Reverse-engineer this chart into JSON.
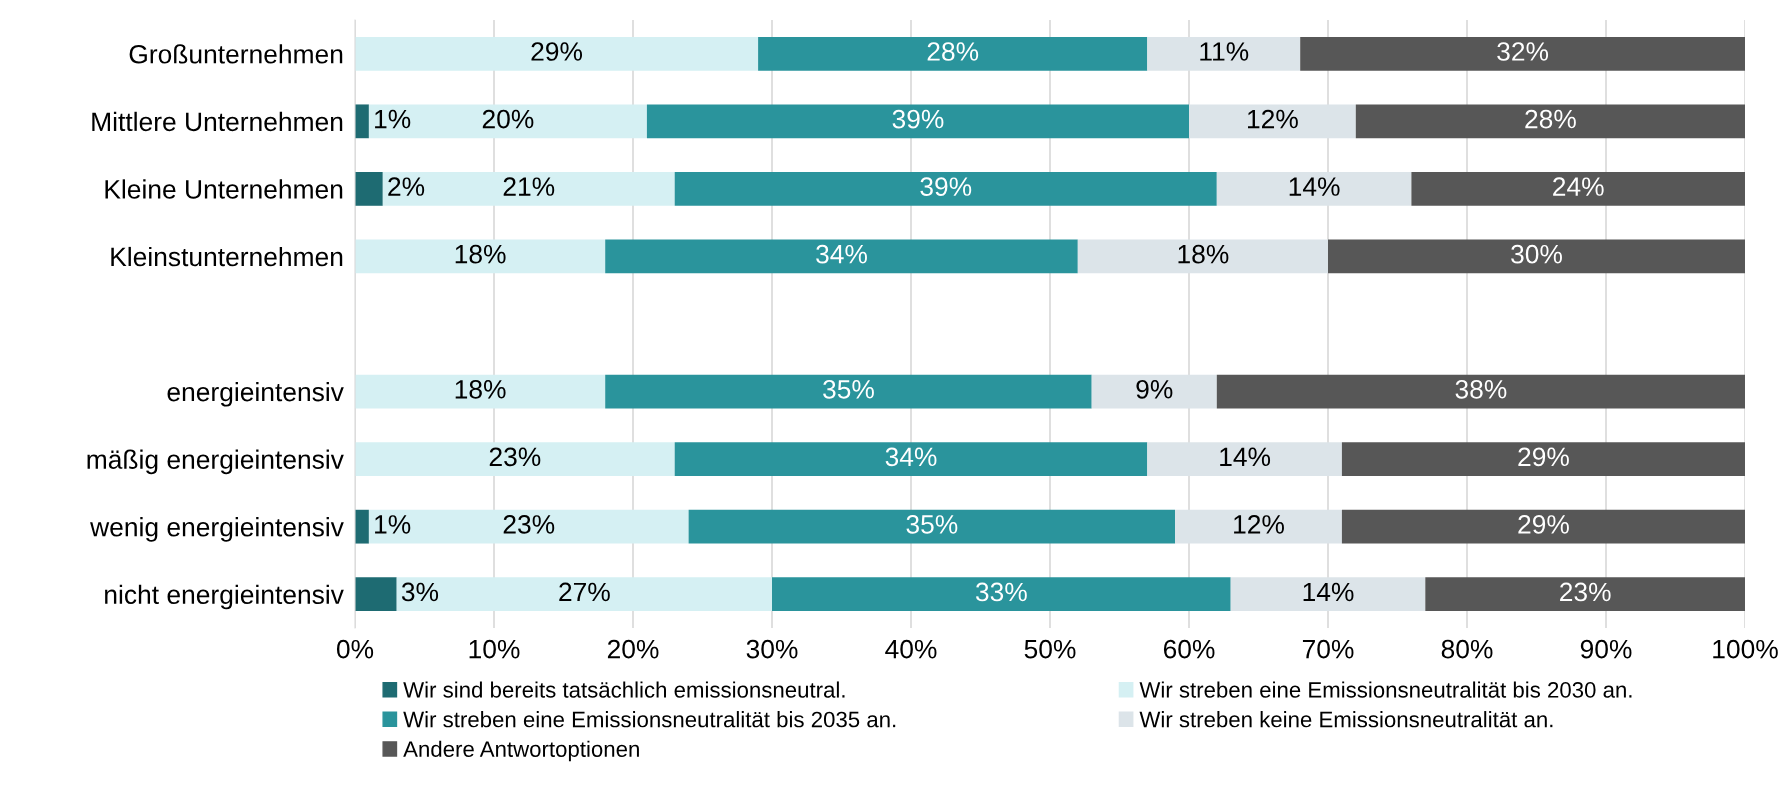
{
  "chart_data": {
    "type": "bar",
    "orientation": "horizontal",
    "stacked": true,
    "categories": [
      "Großunternehmen",
      "Mittlere Unternehmen",
      "Kleine Unternehmen",
      "Kleinstunternehmen",
      null,
      "energieintensiv",
      "mäßig energieintensiv",
      "wenig energieintensiv",
      "nicht energieintensiv"
    ],
    "series": [
      {
        "name": "Wir sind bereits tatsächlich emissionsneutral.",
        "color": "#1e6b72",
        "values": [
          null,
          1,
          2,
          null,
          null,
          null,
          null,
          1,
          3
        ],
        "value_labels": [
          null,
          "1%",
          "2%",
          null,
          null,
          null,
          null,
          "1%",
          "3%"
        ]
      },
      {
        "name": "Wir streben eine Emissionsneutralität bis 2030 an.",
        "color": "#d5f0f3",
        "values": [
          29,
          20,
          21,
          18,
          null,
          18,
          23,
          23,
          27
        ],
        "value_labels": [
          "29%",
          "20%",
          "21%",
          "18%",
          null,
          "18%",
          "23%",
          "23%",
          "27%"
        ]
      },
      {
        "name": "Wir streben eine Emissionsneutralität bis 2035 an.",
        "color": "#2a949c",
        "values": [
          28,
          39,
          39,
          34,
          null,
          35,
          34,
          35,
          33
        ],
        "value_labels": [
          "28%",
          "39%",
          "39%",
          "34%",
          null,
          "35%",
          "34%",
          "35%",
          "33%"
        ]
      },
      {
        "name": "Wir streben keine Emissionsneutralität an.",
        "color": "#dce4e9",
        "values": [
          11,
          12,
          14,
          18,
          null,
          9,
          14,
          12,
          14
        ],
        "value_labels": [
          "11%",
          "12%",
          "14%",
          "18%",
          null,
          "9%",
          "14%",
          "12%",
          "14%"
        ]
      },
      {
        "name": "Andere Antwortoptionen",
        "color": "#575757",
        "values": [
          32,
          28,
          24,
          30,
          null,
          38,
          29,
          29,
          23
        ],
        "value_labels": [
          "32%",
          "28%",
          "24%",
          "30%",
          null,
          "38%",
          "29%",
          "29%",
          "23%"
        ]
      }
    ],
    "xlim": [
      0,
      100
    ],
    "xticks": [
      {
        "value": 0,
        "label": "0%"
      },
      {
        "value": 10,
        "label": "10%"
      },
      {
        "value": 20,
        "label": "20%"
      },
      {
        "value": 30,
        "label": "30%"
      },
      {
        "value": 40,
        "label": "40%"
      },
      {
        "value": 50,
        "label": "50%"
      },
      {
        "value": 60,
        "label": "60%"
      },
      {
        "value": 70,
        "label": "70%"
      },
      {
        "value": 80,
        "label": "80%"
      },
      {
        "value": 90,
        "label": "90%"
      },
      {
        "value": 100,
        "label": "100%"
      }
    ],
    "grid": "x",
    "legend": "bottom"
  }
}
